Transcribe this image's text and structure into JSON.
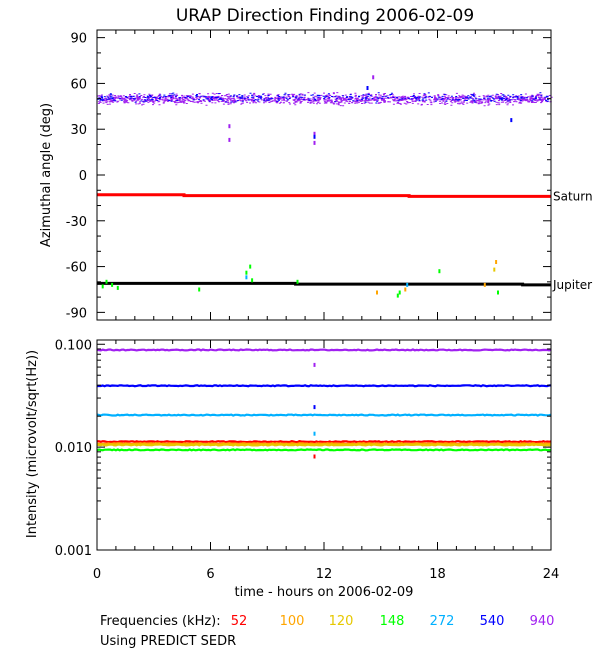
{
  "title": "URAP Direction Finding  2006-02-09",
  "footer": {
    "freq_label": "Frequencies (kHz):",
    "source_note": "Using PREDICT SEDR"
  },
  "chart_data": [
    {
      "type": "scatter",
      "panel": "top",
      "title": "URAP Direction Finding  2006-02-09",
      "ylabel": "Azimuthal angle (deg)",
      "xlim": [
        0,
        24
      ],
      "ylim": [
        -95,
        95
      ],
      "yticks": [
        90,
        60,
        30,
        0,
        -30,
        -60,
        -90
      ],
      "ytick_labels": [
        "90",
        "60",
        "30",
        "0",
        "-30",
        "-60",
        "-90"
      ],
      "grid": false,
      "reference_lines": [
        {
          "name": "Saturn",
          "color": "#ff0000",
          "x": [
            0,
            4.6,
            4.6,
            16.5,
            16.5,
            24
          ],
          "y": [
            -13,
            -13,
            -13.5,
            -13.5,
            -14,
            -14
          ]
        },
        {
          "name": "Jupiter",
          "color": "#000000",
          "x": [
            0,
            10.5,
            10.5,
            22.5,
            22.5,
            24
          ],
          "y": [
            -71,
            -71,
            -71.5,
            -71.5,
            -72,
            -72
          ]
        }
      ],
      "series": [
        {
          "freq_khz": 940,
          "color": "#a020f0",
          "band_center": 50,
          "band_halfwidth": 5,
          "outliers": [
            {
              "x": 7.0,
              "y": 32
            },
            {
              "x": 7.0,
              "y": 23
            },
            {
              "x": 11.5,
              "y": 27
            },
            {
              "x": 11.5,
              "y": 21
            },
            {
              "x": 14.6,
              "y": 64
            }
          ]
        },
        {
          "freq_khz": 540,
          "color": "#0000ff",
          "band_center": 51,
          "band_halfwidth": 4,
          "outliers": [
            {
              "x": 11.5,
              "y": 25
            },
            {
              "x": 14.3,
              "y": 57
            },
            {
              "x": 21.9,
              "y": 36
            }
          ]
        },
        {
          "freq_khz": 148,
          "color": "#00ff00",
          "outliers": [
            {
              "x": 0.3,
              "y": -73
            },
            {
              "x": 0.5,
              "y": -70
            },
            {
              "x": 0.8,
              "y": -72
            },
            {
              "x": 1.1,
              "y": -74
            },
            {
              "x": 5.4,
              "y": -75
            },
            {
              "x": 7.9,
              "y": -64
            },
            {
              "x": 8.1,
              "y": -60
            },
            {
              "x": 8.2,
              "y": -69
            },
            {
              "x": 10.6,
              "y": -70
            },
            {
              "x": 15.9,
              "y": -79
            },
            {
              "x": 16.0,
              "y": -77
            },
            {
              "x": 18.1,
              "y": -63
            },
            {
              "x": 21.2,
              "y": -77
            }
          ]
        },
        {
          "freq_khz": 272,
          "color": "#00b0ff",
          "outliers": [
            {
              "x": 7.9,
              "y": -67
            },
            {
              "x": 16.4,
              "y": -72
            }
          ]
        },
        {
          "freq_khz": 100,
          "color": "#ffa500",
          "outliers": [
            {
              "x": 14.8,
              "y": -77
            },
            {
              "x": 16.3,
              "y": -75
            },
            {
              "x": 20.5,
              "y": -72
            },
            {
              "x": 21.1,
              "y": -57
            }
          ]
        },
        {
          "freq_khz": 120,
          "color": "#e6c800",
          "outliers": [
            {
              "x": 21.0,
              "y": -62
            }
          ]
        }
      ]
    },
    {
      "type": "line",
      "panel": "bottom",
      "xlabel": "time - hours on 2006-02-09",
      "ylabel": "Intensity (microvolt/sqrt(Hz))",
      "xlim": [
        0,
        24
      ],
      "xticks": [
        0,
        6,
        12,
        18,
        24
      ],
      "xtick_labels": [
        "0",
        "6",
        "12",
        "18",
        "24"
      ],
      "yscale": "log",
      "ylim": [
        0.001,
        0.11
      ],
      "yticks": [
        0.1,
        0.01,
        0.001
      ],
      "ytick_labels": [
        "0.100",
        "0.010",
        "0.001"
      ],
      "grid": false,
      "series": [
        {
          "freq_khz": 940,
          "label": "940",
          "color": "#a020f0",
          "level": 0.088
        },
        {
          "freq_khz": 540,
          "label": "540",
          "color": "#0000ff",
          "level": 0.0395
        },
        {
          "freq_khz": 272,
          "label": "272",
          "color": "#00b0ff",
          "level": 0.0205
        },
        {
          "freq_khz": 52,
          "label": "52",
          "color": "#ff0000",
          "level": 0.0113
        },
        {
          "freq_khz": 100,
          "label": "100",
          "color": "#ffa500",
          "level": 0.0108
        },
        {
          "freq_khz": 120,
          "label": "120",
          "color": "#e6c800",
          "level": 0.0105
        },
        {
          "freq_khz": 148,
          "label": "148",
          "color": "#00ff00",
          "level": 0.0094
        }
      ],
      "annotations": [
        {
          "x": 11.5,
          "y": 0.063,
          "color": "#a020f0"
        },
        {
          "x": 11.5,
          "y": 0.0245,
          "color": "#0000ff"
        },
        {
          "x": 11.5,
          "y": 0.0135,
          "color": "#00b0ff"
        },
        {
          "x": 11.5,
          "y": 0.0081,
          "color": "#ff0000"
        }
      ]
    }
  ]
}
